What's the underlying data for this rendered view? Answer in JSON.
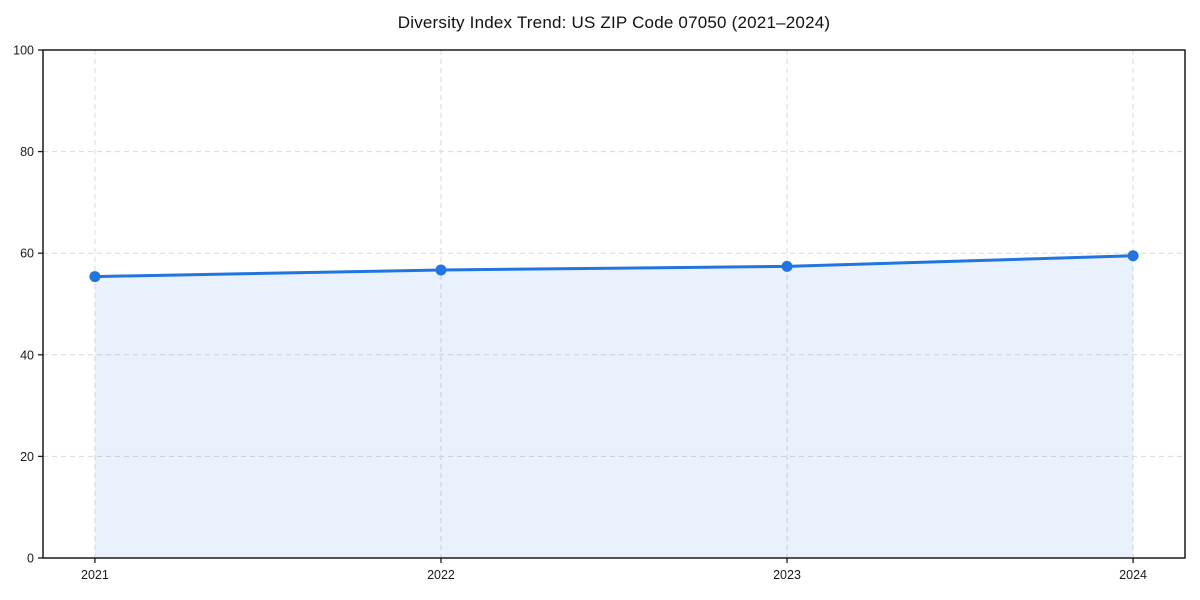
{
  "chart_data": {
    "type": "line",
    "title": "Diversity Index Trend: US ZIP Code 07050 (2021–2024)",
    "x": [
      2021,
      2022,
      2023,
      2024
    ],
    "series": [
      {
        "name": "Diversity Index",
        "values": [
          55.4,
          56.7,
          57.4,
          59.5
        ]
      }
    ],
    "xticks": [
      2021,
      2022,
      2023,
      2024
    ],
    "xtick_labels": [
      "2021",
      "2022",
      "2023",
      "2024"
    ],
    "yticks": [
      0,
      20,
      40,
      60,
      80,
      100
    ],
    "ytick_labels": [
      "0",
      "20",
      "40",
      "60",
      "80",
      "100"
    ],
    "xlim": [
      2020.85,
      2024.15
    ],
    "ylim": [
      0,
      100
    ],
    "grid": true,
    "grid_style": "dashed",
    "legend_position": "none",
    "xlabel": "",
    "ylabel": "",
    "area_fill": true,
    "marker": "circle",
    "colors": {
      "line": "#2274e0",
      "marker": "#2274e0",
      "fill": "#2274e0",
      "fill_opacity": 0.1,
      "grid": "#d9d9d9",
      "axis": "#1a1a1a",
      "tick_label": "#1a1a1a",
      "title": "#111111",
      "background": "#ffffff"
    }
  }
}
